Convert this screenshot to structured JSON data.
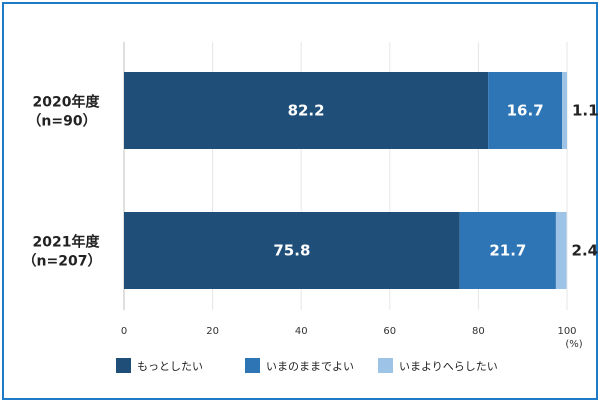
{
  "chart_data": {
    "type": "bar",
    "orientation": "horizontal",
    "stacked": true,
    "categories": [
      [
        "2020年度",
        "（n=90）"
      ],
      [
        "2021年度",
        "（n=207）"
      ]
    ],
    "series": [
      {
        "name": "もっとしたい",
        "values": [
          82.2,
          75.8
        ],
        "color": "#1f4e79"
      },
      {
        "name": "いまのままでよい",
        "values": [
          16.7,
          21.7
        ],
        "color": "#2e75b6"
      },
      {
        "name": "いまよりへらしたい",
        "values": [
          1.1,
          2.4
        ],
        "color": "#9dc3e6"
      }
    ],
    "xlim": [
      0,
      100
    ],
    "xticks": [
      "0",
      "20",
      "40",
      "60",
      "80",
      "100"
    ],
    "unit": "(%)",
    "legend": "bottom",
    "grid": true
  }
}
